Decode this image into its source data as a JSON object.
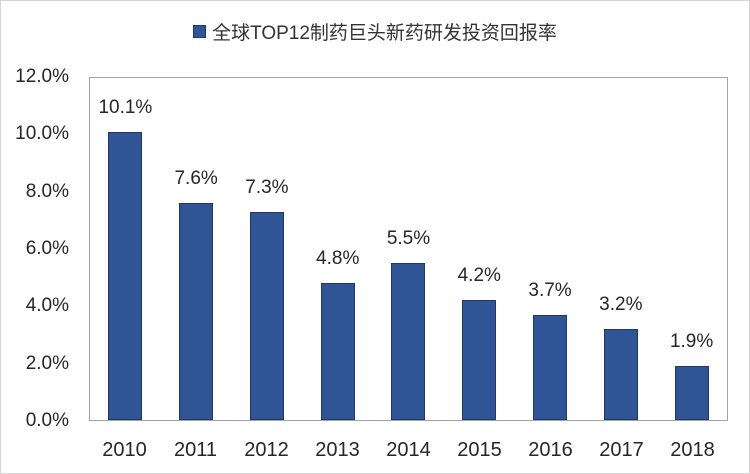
{
  "legend": {
    "label": "全球TOP12制药巨头新药研发投资回报率"
  },
  "colors": {
    "bar_fill": "#2F5597",
    "bar_border": "#1F3864",
    "plot_border": "#A3A3A3",
    "axis_text": "#262626",
    "title_text": "#333333",
    "outer_border": "#D4D4D4"
  },
  "chart_data": {
    "type": "bar",
    "title": "全球TOP12制药巨头新药研发投资回报率",
    "categories": [
      "2010",
      "2011",
      "2012",
      "2013",
      "2014",
      "2015",
      "2016",
      "2017",
      "2018"
    ],
    "values": [
      10.1,
      7.6,
      7.3,
      4.8,
      5.5,
      4.2,
      3.7,
      3.2,
      1.9
    ],
    "data_labels": [
      "10.1%",
      "7.6%",
      "7.3%",
      "4.8%",
      "5.5%",
      "4.2%",
      "3.7%",
      "3.2%",
      "1.9%"
    ],
    "xlabel": "",
    "ylabel": "",
    "ylim": [
      0,
      12
    ],
    "y_ticks": [
      "12.0%",
      "10.0%",
      "8.0%",
      "6.0%",
      "4.0%",
      "2.0%",
      "0.0%"
    ],
    "y_tick_values": [
      12,
      10,
      8,
      6,
      4,
      2,
      0
    ],
    "grid": false,
    "legend_position": "top-center"
  }
}
